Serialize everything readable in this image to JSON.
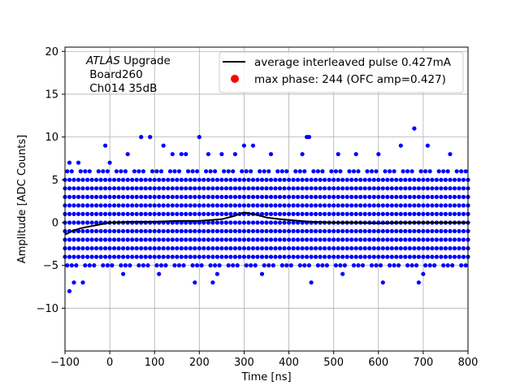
{
  "chart_data": {
    "type": "scatter",
    "xlabel": "Time [ns]",
    "ylabel": "Amplitude [ADC Counts]",
    "xlim": [
      -100,
      800
    ],
    "ylim": [
      -15,
      20.5
    ],
    "xticks": [
      -100,
      0,
      100,
      200,
      300,
      400,
      500,
      600,
      700,
      800
    ],
    "yticks": [
      -10,
      -5,
      0,
      5,
      10,
      15,
      20
    ],
    "grid": true,
    "legend_position": "top-right",
    "annotation": {
      "italic": "ATLAS",
      "rest": " Upgrade",
      "line2": " Board260",
      "line3": " Ch014 35dB"
    },
    "series": [
      {
        "name": "average interleaved pulse 0.427mA",
        "type": "line",
        "color": "#000000",
        "x": [
          -100,
          -80,
          -60,
          -40,
          -20,
          0,
          50,
          100,
          150,
          200,
          250,
          280,
          300,
          320,
          350,
          380,
          400,
          450,
          500,
          550,
          600,
          650,
          700,
          750,
          800
        ],
        "y": [
          -1.4,
          -0.9,
          -0.6,
          -0.4,
          -0.2,
          0.0,
          0.1,
          0.1,
          0.2,
          0.2,
          0.4,
          0.8,
          1.2,
          1.0,
          0.6,
          0.4,
          0.3,
          0.1,
          0.0,
          0.0,
          -0.1,
          0.0,
          0.0,
          0.0,
          0.0
        ]
      },
      {
        "name": "samples",
        "type": "scatter",
        "color": "#0000ff",
        "levels": [
          -4,
          -3,
          -2,
          -1,
          0,
          1,
          2,
          3,
          4,
          5
        ],
        "x_step": 10,
        "sparse_levels": [
          -5,
          6
        ],
        "outliers": [
          {
            "x": -90,
            "y": -8
          },
          {
            "x": -80,
            "y": -7
          },
          {
            "x": -60,
            "y": -7
          },
          {
            "x": 30,
            "y": -6
          },
          {
            "x": 110,
            "y": -6
          },
          {
            "x": 190,
            "y": -7
          },
          {
            "x": 230,
            "y": -7
          },
          {
            "x": 240,
            "y": -6
          },
          {
            "x": 340,
            "y": -6
          },
          {
            "x": 450,
            "y": -7
          },
          {
            "x": 520,
            "y": -6
          },
          {
            "x": 610,
            "y": -7
          },
          {
            "x": 690,
            "y": -7
          },
          {
            "x": 700,
            "y": -6
          },
          {
            "x": -90,
            "y": 7
          },
          {
            "x": -70,
            "y": 7
          },
          {
            "x": -10,
            "y": 9
          },
          {
            "x": 0,
            "y": 7
          },
          {
            "x": 40,
            "y": 8
          },
          {
            "x": 70,
            "y": 10
          },
          {
            "x": 90,
            "y": 10
          },
          {
            "x": 120,
            "y": 9
          },
          {
            "x": 140,
            "y": 8
          },
          {
            "x": 160,
            "y": 8
          },
          {
            "x": 170,
            "y": 8
          },
          {
            "x": 200,
            "y": 10
          },
          {
            "x": 220,
            "y": 8
          },
          {
            "x": 250,
            "y": 8
          },
          {
            "x": 280,
            "y": 8
          },
          {
            "x": 300,
            "y": 9
          },
          {
            "x": 320,
            "y": 9
          },
          {
            "x": 360,
            "y": 8
          },
          {
            "x": 430,
            "y": 8
          },
          {
            "x": 440,
            "y": 10
          },
          {
            "x": 445,
            "y": 10
          },
          {
            "x": 510,
            "y": 8
          },
          {
            "x": 550,
            "y": 8
          },
          {
            "x": 600,
            "y": 8
          },
          {
            "x": 650,
            "y": 9
          },
          {
            "x": 680,
            "y": 11
          },
          {
            "x": 710,
            "y": 9
          },
          {
            "x": 760,
            "y": 8
          }
        ]
      },
      {
        "name": "max phase: 244 (OFC amp=0.427)",
        "type": "point",
        "color": "#ff0000"
      }
    ]
  }
}
